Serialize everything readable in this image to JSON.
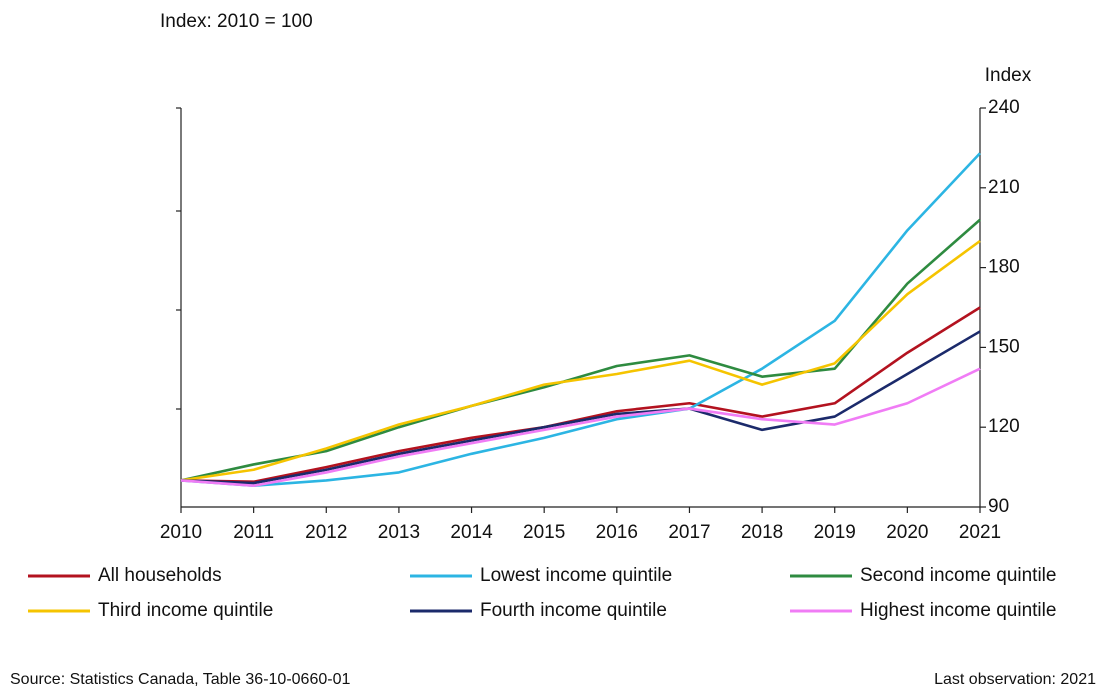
{
  "chart_data": {
    "type": "line",
    "title": "Index: 2010 = 100",
    "y_label": "Index",
    "source": "Source: Statistics Canada, Table 36-10-0660-01",
    "note": "Last observation: 2021",
    "x": [
      2010,
      2011,
      2012,
      2013,
      2014,
      2015,
      2016,
      2017,
      2018,
      2019,
      2020,
      2021
    ],
    "xlim": [
      2010,
      2021
    ],
    "xticks": [
      2010,
      2011,
      2012,
      2013,
      2014,
      2015,
      2016,
      2017,
      2018,
      2019,
      2020,
      2021
    ],
    "ylim": [
      90,
      240
    ],
    "yticks": [
      90,
      120,
      150,
      180,
      210,
      240
    ],
    "y_axis_side": "right",
    "grid": false,
    "series": [
      {
        "name": "All households",
        "color": "#b3121f",
        "values": [
          100,
          99.5,
          105,
          111,
          116,
          120,
          126,
          129,
          124,
          129,
          148,
          165
        ]
      },
      {
        "name": "Lowest income quintile",
        "color": "#2cb5e3",
        "values": [
          100,
          98,
          100,
          103,
          110,
          116,
          123,
          127,
          142,
          160,
          194,
          223
        ]
      },
      {
        "name": "Second income quintile",
        "color": "#2e8b40",
        "values": [
          100,
          106,
          111,
          120,
          128,
          135,
          143,
          147,
          139,
          142,
          174,
          198
        ]
      },
      {
        "name": "Third income quintile",
        "color": "#f5c400",
        "values": [
          100,
          104,
          112,
          121,
          128,
          136,
          140,
          145,
          136,
          144,
          170,
          190
        ]
      },
      {
        "name": "Fourth income quintile",
        "color": "#1b2a6b",
        "values": [
          100,
          99,
          104,
          110,
          115,
          120,
          125,
          127,
          119,
          124,
          140,
          156
        ]
      },
      {
        "name": "Highest income quintile",
        "color": "#f07cf5",
        "values": [
          100,
          98,
          103,
          109,
          114,
          119,
          124,
          127,
          123,
          121,
          129,
          142
        ]
      }
    ]
  }
}
